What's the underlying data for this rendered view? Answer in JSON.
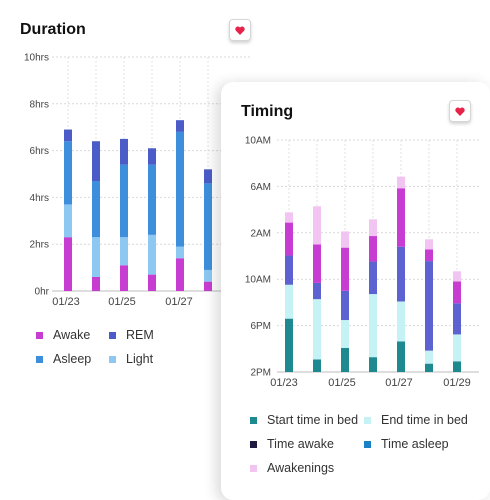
{
  "duration_card": {
    "title": "Duration",
    "heart_button": "favorite",
    "legend": [
      {
        "label": "Awake",
        "color": "#c83dd1"
      },
      {
        "label": "REM",
        "color": "#4b5cc8"
      },
      {
        "label": "Asleep",
        "color": "#3d8fdc"
      },
      {
        "label": "Light",
        "color": "#8cc8f2"
      }
    ]
  },
  "timing_card": {
    "title": "Timing",
    "heart_button": "favorite",
    "legend": [
      {
        "label": "Start time in bed",
        "color": "#1e8a8f"
      },
      {
        "label": "End time in bed",
        "color": "#c4f2f5"
      },
      {
        "label": "Time awake",
        "color": "#1d1b40"
      },
      {
        "label": "Time asleep",
        "color": "#1a82c4"
      },
      {
        "label": "Awakenings",
        "color": "#f2c4f2"
      }
    ]
  },
  "chart_data": [
    {
      "type": "bar",
      "stacked": true,
      "title": "Duration",
      "y_ticks": [
        "0hr",
        "2hrs",
        "4hrs",
        "6hrs",
        "8hrs",
        "10hrs"
      ],
      "ylim": [
        0,
        10
      ],
      "x_ticks": [
        "01/23",
        "01/25",
        "01/27"
      ],
      "grid": true,
      "series": [
        {
          "name": "Awake",
          "color": "#c83dd1",
          "values": [
            2.3,
            0.6,
            1.1,
            0.7,
            1.4,
            0.4
          ]
        },
        {
          "name": "Light",
          "color": "#8cc8f2",
          "values": [
            1.4,
            1.7,
            1.2,
            1.7,
            0.5,
            0.5
          ]
        },
        {
          "name": "Asleep",
          "color": "#3d8fdc",
          "values": [
            2.7,
            2.4,
            3.1,
            3.0,
            4.9,
            3.7
          ]
        },
        {
          "name": "REM",
          "color": "#4b5cc8",
          "values": [
            0.5,
            1.7,
            1.1,
            0.7,
            0.5,
            0.6
          ]
        }
      ]
    },
    {
      "type": "bar",
      "stacked": true,
      "title": "Timing",
      "y_ticks": [
        "2PM",
        "6PM",
        "10AM",
        "2AM",
        "6AM",
        "10AM"
      ],
      "ylim": [
        0,
        5
      ],
      "x_ticks": [
        "01/23",
        "01/25",
        "01/27",
        "01/29"
      ],
      "grid": true,
      "series": [
        {
          "name": "Start time in bed",
          "color": "#1e8a8f",
          "values": [
            1.15,
            0.27,
            0.52,
            0.32,
            0.66,
            0.18,
            0.23
          ]
        },
        {
          "name": "End time in bed",
          "color": "#c4f2f5",
          "values": [
            0.73,
            1.3,
            0.6,
            1.36,
            0.86,
            0.28,
            0.58
          ]
        },
        {
          "name": "Time asleep",
          "color": "#5c62d0",
          "values": [
            0.63,
            0.35,
            0.63,
            0.7,
            1.18,
            1.93,
            0.67
          ]
        },
        {
          "name": "Awakenings",
          "color": "#c83dd1",
          "values": [
            0.71,
            0.83,
            0.93,
            0.55,
            1.26,
            0.25,
            0.47
          ]
        },
        {
          "name": "Awakenings",
          "color": "#f2c4f2",
          "values": [
            0.22,
            0.82,
            0.35,
            0.36,
            0.25,
            0.22,
            0.22
          ]
        }
      ]
    }
  ]
}
